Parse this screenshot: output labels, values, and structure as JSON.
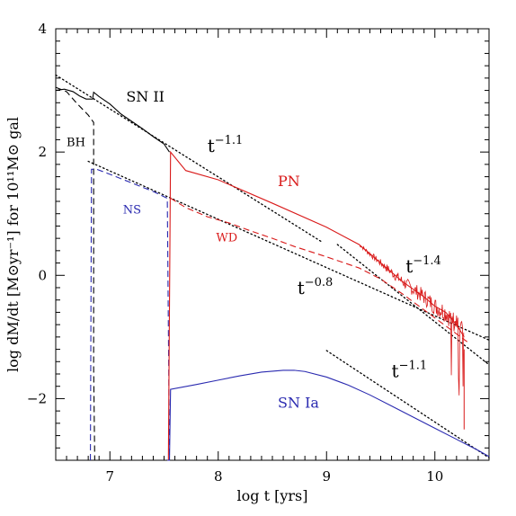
{
  "chart_data": {
    "type": "line",
    "xlabel": "log t [yrs]",
    "ylabel": "log dM/dt [M⊙yr⁻¹] for 10¹¹M⊙ gal",
    "xlim": [
      6.5,
      10.5
    ],
    "ylim": [
      -3,
      4
    ],
    "x_ticks": [
      7,
      8,
      9,
      10
    ],
    "y_ticks": [
      -2,
      0,
      2,
      4
    ],
    "grid": false,
    "colors": {
      "black": "#000000",
      "red": "#d91a1a",
      "blue": "#2a2ab0"
    },
    "series": [
      {
        "name": "SN II",
        "color": "#000000",
        "style": "solid",
        "x": [
          6.5,
          6.58,
          6.66,
          6.72,
          6.78,
          6.84,
          6.85,
          6.9,
          7.0,
          7.1,
          7.2,
          7.3,
          7.4,
          7.5,
          7.55
        ],
        "y": [
          3.0,
          3.02,
          2.98,
          2.91,
          2.86,
          2.86,
          2.97,
          2.9,
          2.78,
          2.62,
          2.5,
          2.38,
          2.25,
          2.13,
          2.0
        ]
      },
      {
        "name": "BH",
        "color": "#000000",
        "style": "dashed",
        "x": [
          6.5,
          6.6,
          6.7,
          6.8,
          6.85,
          6.85,
          6.86
        ],
        "y": [
          3.05,
          2.98,
          2.78,
          2.6,
          2.48,
          -1.5,
          -3.0
        ]
      },
      {
        "name": "NS",
        "color": "#2a2ab0",
        "style": "dashed",
        "x": [
          6.82,
          6.83,
          6.88,
          7.0,
          7.2,
          7.4,
          7.53,
          7.55
        ],
        "y": [
          -3.0,
          1.72,
          1.72,
          1.64,
          1.5,
          1.36,
          1.25,
          -3.0
        ]
      },
      {
        "name": "PN",
        "color": "#d91a1a",
        "style": "solid",
        "x": [
          7.54,
          7.56,
          7.7,
          8.0,
          8.5,
          9.0,
          9.3,
          9.5,
          9.7,
          9.9,
          10.0,
          10.1,
          10.2,
          10.27
        ],
        "y": [
          -3.0,
          2.0,
          1.7,
          1.55,
          1.17,
          0.78,
          0.5,
          0.2,
          -0.1,
          -0.35,
          -0.5,
          -0.6,
          -0.8,
          -1.0
        ]
      },
      {
        "name": "WD",
        "color": "#d91a1a",
        "style": "dashed",
        "x": [
          7.56,
          7.7,
          7.9,
          8.1,
          8.3,
          8.5,
          8.7,
          9.0,
          9.3,
          9.5,
          9.7,
          9.9,
          10.1,
          10.3
        ],
        "y": [
          1.25,
          1.1,
          0.95,
          0.85,
          0.72,
          0.6,
          0.47,
          0.3,
          0.12,
          -0.06,
          -0.3,
          -0.56,
          -0.82,
          -1.08
        ]
      },
      {
        "name": "SN Ia",
        "color": "#2a2ab0",
        "style": "solid",
        "x": [
          7.53,
          7.55,
          7.56,
          7.8,
          8.0,
          8.2,
          8.4,
          8.6,
          8.7,
          8.8,
          9.0,
          9.2,
          9.4,
          9.6,
          9.8,
          10.0,
          10.2,
          10.4,
          10.5
        ],
        "y": [
          -3.0,
          -3.0,
          -1.85,
          -1.77,
          -1.7,
          -1.63,
          -1.57,
          -1.54,
          -1.54,
          -1.56,
          -1.65,
          -1.78,
          -1.94,
          -2.12,
          -2.3,
          -2.48,
          -2.66,
          -2.84,
          -2.94
        ]
      }
    ],
    "reference_lines": [
      {
        "x": [
          6.5,
          8.95
        ],
        "y": [
          3.25,
          0.55
        ],
        "style": "dotted",
        "label": "t⁻¹·¹"
      },
      {
        "x": [
          6.8,
          10.5
        ],
        "y": [
          1.85,
          -1.05
        ],
        "style": "dotted",
        "label": "t⁻⁰·⁸"
      },
      {
        "x": [
          9.1,
          10.5
        ],
        "y": [
          0.5,
          -1.45
        ],
        "style": "dotted",
        "label": "t⁻¹·⁴"
      },
      {
        "x": [
          9.0,
          10.5
        ],
        "y": [
          -1.22,
          -2.96
        ],
        "style": "dotted",
        "label": "t⁻¹·¹"
      }
    ],
    "annotations": [
      {
        "id": "sn2",
        "text": "SN II",
        "color": "#000000",
        "x": 7.15,
        "y": 2.82
      },
      {
        "id": "bh",
        "text": "BH",
        "color": "#000000",
        "x": 6.6,
        "y": 2.1
      },
      {
        "id": "ns",
        "text": "NS",
        "color": "#2a2ab0",
        "x": 7.12,
        "y": 1.0
      },
      {
        "id": "wd",
        "text": "WD",
        "color": "#d91a1a",
        "x": 7.98,
        "y": 0.55
      },
      {
        "id": "pn",
        "text": "PN",
        "color": "#d91a1a",
        "x": 8.55,
        "y": 1.45
      },
      {
        "id": "sn1a",
        "text": "SN Ia",
        "color": "#2a2ab0",
        "x": 8.55,
        "y": -2.15
      }
    ],
    "power_labels": [
      {
        "id": "p1",
        "base": "t",
        "exp": "−1.1",
        "color": "#000000",
        "x": 7.9,
        "y": 2.0
      },
      {
        "id": "p2",
        "base": "t",
        "exp": "−0.8",
        "color": "#000000",
        "x": 8.73,
        "y": -0.3
      },
      {
        "id": "p3",
        "base": "t",
        "exp": "−1.4",
        "color": "#000000",
        "x": 9.73,
        "y": 0.05
      },
      {
        "id": "p4",
        "base": "t",
        "exp": "−1.1",
        "color": "#000000",
        "x": 9.6,
        "y": -1.65
      }
    ]
  }
}
